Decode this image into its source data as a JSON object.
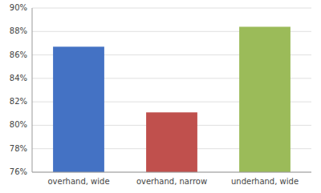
{
  "chart_data": {
    "type": "bar",
    "categories": [
      "overhand, wide",
      "overhand, narrow",
      "underhand, wide"
    ],
    "values": [
      86.7,
      81.1,
      88.4
    ],
    "colors": [
      "#4472C4",
      "#C0504D",
      "#9BBB59"
    ],
    "ylim": [
      76,
      90
    ],
    "yticks": [
      {
        "value": 76,
        "label": "76%"
      },
      {
        "value": 78,
        "label": "78%"
      },
      {
        "value": 80,
        "label": "80%"
      },
      {
        "value": 82,
        "label": "82%"
      },
      {
        "value": 84,
        "label": "84%"
      },
      {
        "value": 86,
        "label": "86%"
      },
      {
        "value": 88,
        "label": "88%"
      },
      {
        "value": 90,
        "label": "90%"
      }
    ],
    "grid": true
  }
}
